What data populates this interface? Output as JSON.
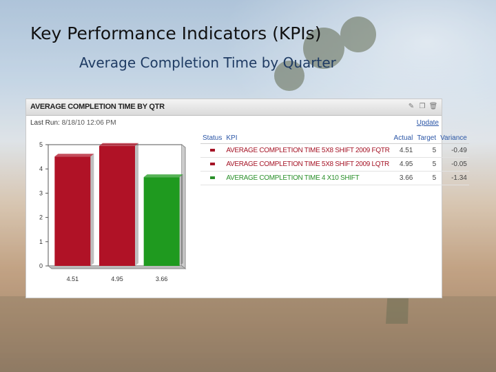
{
  "slide": {
    "title": "Key Performance Indicators (KPIs)",
    "subtitle": "Average Completion Time by Quarter"
  },
  "panel": {
    "title": "AVERAGE COMPLETION TIME BY QTR",
    "last_run_label": "Last Run:",
    "last_run_value": "8/18/10 12:06 PM",
    "update_link": "Update",
    "icons": [
      "pencil-icon",
      "copy-icon",
      "trash-icon"
    ]
  },
  "table": {
    "headers": [
      "Status",
      "KPI",
      "Actual",
      "Target",
      "Variance"
    ],
    "rows": [
      {
        "status_color": "#a51426",
        "kpi": "AVERAGE COMPLETION TIME 5X8 SHIFT 2009 FQTR",
        "actual": "4.51",
        "target": "5",
        "variance": "-0.49"
      },
      {
        "status_color": "#a51426",
        "kpi": "AVERAGE COMPLETION TIME 5X8 SHIFT 2009 LQTR",
        "actual": "4.95",
        "target": "5",
        "variance": "-0.05"
      },
      {
        "status_color": "#2a8f2a",
        "kpi": "AVERAGE COMPLETION TIME 4 X10 SHIFT",
        "actual": "3.66",
        "target": "5",
        "variance": "-1.34"
      }
    ]
  },
  "chart_data": {
    "type": "bar",
    "categories": [
      "4.51",
      "4.95",
      "3.66"
    ],
    "values": [
      4.51,
      4.95,
      3.66
    ],
    "colors": [
      "#b01226",
      "#b01226",
      "#1f9a1f"
    ],
    "title": "",
    "xlabel": "",
    "ylabel": "",
    "ylim": [
      0,
      5
    ],
    "yticks": [
      "0",
      "1",
      "2",
      "3",
      "4",
      "5"
    ],
    "grid": false
  },
  "colors": {
    "header_link": "#2a55a6",
    "red": "#a51426",
    "green": "#2a8f2a"
  }
}
